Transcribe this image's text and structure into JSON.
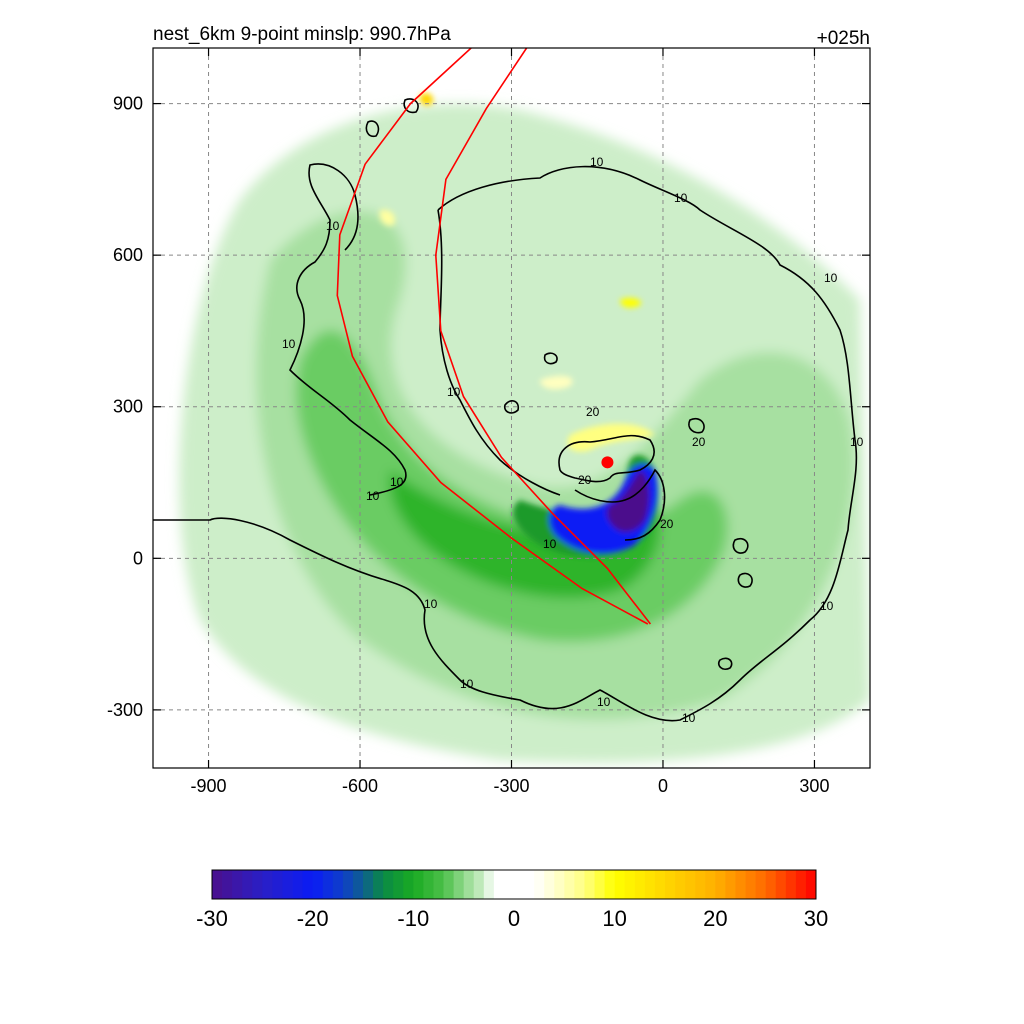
{
  "chart_data": {
    "type": "heatmap",
    "title_left": "nest_6km  9-point minslp: 990.7hPa",
    "title_right": "+025h",
    "xlabel": "",
    "ylabel": "",
    "xlim": [
      -1010,
      410
    ],
    "ylim": [
      -415,
      1010
    ],
    "x_ticks": [
      "-900",
      "-600",
      "-300",
      "0",
      "300"
    ],
    "x_tick_values": [
      -900,
      -600,
      -300,
      0,
      300
    ],
    "y_ticks": [
      "900",
      "600",
      "300",
      "0",
      "-300"
    ],
    "y_tick_values": [
      900,
      600,
      300,
      0,
      -300
    ],
    "grid": true,
    "colorbar": {
      "range": [
        -30,
        30
      ],
      "tick_labels": [
        "-30",
        "-20",
        "-10",
        "0",
        "10",
        "20",
        "30"
      ],
      "tick_values": [
        -30,
        -20,
        -10,
        0,
        10,
        20,
        30
      ],
      "stops": [
        {
          "v": -30,
          "color": "#4b0f8c"
        },
        {
          "v": -25,
          "color": "#2a1fc6"
        },
        {
          "v": -20,
          "color": "#0a1cf5"
        },
        {
          "v": -17,
          "color": "#0f3fc8"
        },
        {
          "v": -15,
          "color": "#0e5f8f"
        },
        {
          "v": -13,
          "color": "#0a8a46"
        },
        {
          "v": -10,
          "color": "#1aaa22"
        },
        {
          "v": -7,
          "color": "#4cc04a"
        },
        {
          "v": -5,
          "color": "#8fd88a"
        },
        {
          "v": -3,
          "color": "#cdeec9"
        },
        {
          "v": -2,
          "color": "#ffffff"
        },
        {
          "v": 2,
          "color": "#ffffff"
        },
        {
          "v": 4,
          "color": "#ffffd2"
        },
        {
          "v": 7,
          "color": "#ffff80"
        },
        {
          "v": 10,
          "color": "#ffff00"
        },
        {
          "v": 15,
          "color": "#ffd700"
        },
        {
          "v": 20,
          "color": "#ffb000"
        },
        {
          "v": 25,
          "color": "#ff6a00"
        },
        {
          "v": 30,
          "color": "#ff0000"
        }
      ]
    },
    "contour_labels": [
      "10",
      "20"
    ],
    "storm_center": {
      "x": -110,
      "y": 190
    },
    "track_color": "#ff0000",
    "contour_color": "#000000",
    "red_track_lines": [
      {
        "name": "",
        "points": [
          [
            -380,
            1010
          ],
          [
            -500,
            900
          ],
          [
            -590,
            780
          ],
          [
            -640,
            640
          ],
          [
            -645,
            520
          ],
          [
            -615,
            400
          ],
          [
            -545,
            270
          ],
          [
            -440,
            150
          ],
          [
            -300,
            40
          ],
          [
            -160,
            -60
          ],
          [
            -30,
            -130
          ]
        ]
      },
      {
        "name": "",
        "points": [
          [
            -270,
            1010
          ],
          [
            -350,
            890
          ],
          [
            -430,
            750
          ],
          [
            -450,
            600
          ],
          [
            -440,
            450
          ],
          [
            -395,
            320
          ],
          [
            -320,
            200
          ],
          [
            -220,
            90
          ],
          [
            -110,
            -20
          ],
          [
            -25,
            -130
          ]
        ]
      }
    ]
  }
}
